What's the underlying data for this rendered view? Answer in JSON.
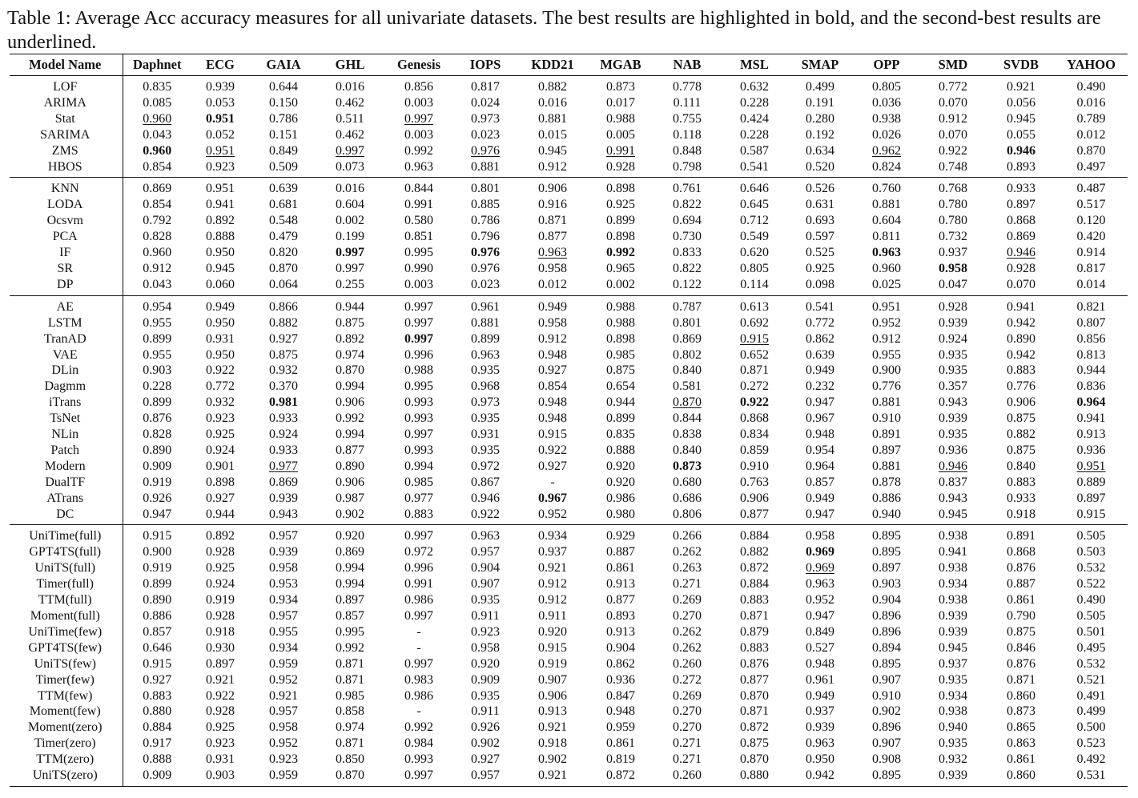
{
  "caption": "Table 1: Average Acc accuracy measures for all univariate datasets. The best results are highlighted in bold, and the second-best results are underlined.",
  "columns": [
    "Model Name",
    "Daphnet",
    "ECG",
    "GAIA",
    "GHL",
    "Genesis",
    "IOPS",
    "KDD21",
    "MGAB",
    "NAB",
    "MSL",
    "SMAP",
    "OPP",
    "SMD",
    "SVDB",
    "YAHOO"
  ],
  "groups": [
    {
      "rows": [
        {
          "model": "LOF",
          "values": [
            "0.835",
            "0.939",
            "0.644",
            "0.016",
            "0.856",
            "0.817",
            "0.882",
            "0.873",
            "0.778",
            "0.632",
            "0.499",
            "0.805",
            "0.772",
            "0.921",
            "0.490"
          ]
        },
        {
          "model": "ARIMA",
          "values": [
            "0.085",
            "0.053",
            "0.150",
            "0.462",
            "0.003",
            "0.024",
            "0.016",
            "0.017",
            "0.111",
            "0.228",
            "0.191",
            "0.036",
            "0.070",
            "0.056",
            "0.016"
          ]
        },
        {
          "model": "Stat",
          "values": [
            "0.960",
            "0.951",
            "0.786",
            "0.511",
            "0.997",
            "0.973",
            "0.881",
            "0.988",
            "0.755",
            "0.424",
            "0.280",
            "0.938",
            "0.912",
            "0.945",
            "0.789"
          ],
          "bold": [
            1
          ],
          "underline": [
            0,
            4
          ]
        },
        {
          "model": "SARIMA",
          "values": [
            "0.043",
            "0.052",
            "0.151",
            "0.462",
            "0.003",
            "0.023",
            "0.015",
            "0.005",
            "0.118",
            "0.228",
            "0.192",
            "0.026",
            "0.070",
            "0.055",
            "0.012"
          ]
        },
        {
          "model": "ZMS",
          "values": [
            "0.960",
            "0.951",
            "0.849",
            "0.997",
            "0.992",
            "0.976",
            "0.945",
            "0.991",
            "0.848",
            "0.587",
            "0.634",
            "0.962",
            "0.922",
            "0.946",
            "0.870"
          ],
          "bold": [
            0,
            13
          ],
          "underline": [
            1,
            3,
            5,
            7,
            11
          ]
        },
        {
          "model": "HBOS",
          "values": [
            "0.854",
            "0.923",
            "0.509",
            "0.073",
            "0.963",
            "0.881",
            "0.912",
            "0.928",
            "0.798",
            "0.541",
            "0.520",
            "0.824",
            "0.748",
            "0.893",
            "0.497"
          ]
        }
      ]
    },
    {
      "rows": [
        {
          "model": "KNN",
          "values": [
            "0.869",
            "0.951",
            "0.639",
            "0.016",
            "0.844",
            "0.801",
            "0.906",
            "0.898",
            "0.761",
            "0.646",
            "0.526",
            "0.760",
            "0.768",
            "0.933",
            "0.487"
          ]
        },
        {
          "model": "LODA",
          "values": [
            "0.854",
            "0.941",
            "0.681",
            "0.604",
            "0.991",
            "0.885",
            "0.916",
            "0.925",
            "0.822",
            "0.645",
            "0.631",
            "0.881",
            "0.780",
            "0.897",
            "0.517"
          ]
        },
        {
          "model": "Ocsvm",
          "values": [
            "0.792",
            "0.892",
            "0.548",
            "0.002",
            "0.580",
            "0.786",
            "0.871",
            "0.899",
            "0.694",
            "0.712",
            "0.693",
            "0.604",
            "0.780",
            "0.868",
            "0.120"
          ]
        },
        {
          "model": "PCA",
          "values": [
            "0.828",
            "0.888",
            "0.479",
            "0.199",
            "0.851",
            "0.796",
            "0.877",
            "0.898",
            "0.730",
            "0.549",
            "0.597",
            "0.811",
            "0.732",
            "0.869",
            "0.420"
          ]
        },
        {
          "model": "IF",
          "values": [
            "0.960",
            "0.950",
            "0.820",
            "0.997",
            "0.995",
            "0.976",
            "0.963",
            "0.992",
            "0.833",
            "0.620",
            "0.525",
            "0.963",
            "0.937",
            "0.946",
            "0.914"
          ],
          "bold": [
            3,
            5,
            7,
            11
          ],
          "underline": [
            6,
            13
          ]
        },
        {
          "model": "SR",
          "values": [
            "0.912",
            "0.945",
            "0.870",
            "0.997",
            "0.990",
            "0.976",
            "0.958",
            "0.965",
            "0.822",
            "0.805",
            "0.925",
            "0.960",
            "0.958",
            "0.928",
            "0.817"
          ],
          "bold": [
            12
          ]
        },
        {
          "model": "DP",
          "values": [
            "0.043",
            "0.060",
            "0.064",
            "0.255",
            "0.003",
            "0.023",
            "0.012",
            "0.002",
            "0.122",
            "0.114",
            "0.098",
            "0.025",
            "0.047",
            "0.070",
            "0.014"
          ]
        }
      ]
    },
    {
      "rows": [
        {
          "model": "AE",
          "values": [
            "0.954",
            "0.949",
            "0.866",
            "0.944",
            "0.997",
            "0.961",
            "0.949",
            "0.988",
            "0.787",
            "0.613",
            "0.541",
            "0.951",
            "0.928",
            "0.941",
            "0.821"
          ]
        },
        {
          "model": "LSTM",
          "values": [
            "0.955",
            "0.950",
            "0.882",
            "0.875",
            "0.997",
            "0.881",
            "0.958",
            "0.988",
            "0.801",
            "0.692",
            "0.772",
            "0.952",
            "0.939",
            "0.942",
            "0.807"
          ]
        },
        {
          "model": "TranAD",
          "values": [
            "0.899",
            "0.931",
            "0.927",
            "0.892",
            "0.997",
            "0.899",
            "0.912",
            "0.898",
            "0.869",
            "0.915",
            "0.862",
            "0.912",
            "0.924",
            "0.890",
            "0.856"
          ],
          "bold": [
            4
          ],
          "underline": [
            9
          ]
        },
        {
          "model": "VAE",
          "values": [
            "0.955",
            "0.950",
            "0.875",
            "0.974",
            "0.996",
            "0.963",
            "0.948",
            "0.985",
            "0.802",
            "0.652",
            "0.639",
            "0.955",
            "0.935",
            "0.942",
            "0.813"
          ]
        },
        {
          "model": "DLin",
          "values": [
            "0.903",
            "0.922",
            "0.932",
            "0.870",
            "0.988",
            "0.935",
            "0.927",
            "0.875",
            "0.840",
            "0.871",
            "0.949",
            "0.900",
            "0.935",
            "0.883",
            "0.944"
          ]
        },
        {
          "model": "Dagmm",
          "values": [
            "0.228",
            "0.772",
            "0.370",
            "0.994",
            "0.995",
            "0.968",
            "0.854",
            "0.654",
            "0.581",
            "0.272",
            "0.232",
            "0.776",
            "0.357",
            "0.776",
            "0.836"
          ]
        },
        {
          "model": "iTrans",
          "values": [
            "0.899",
            "0.932",
            "0.981",
            "0.906",
            "0.993",
            "0.973",
            "0.948",
            "0.944",
            "0.870",
            "0.922",
            "0.947",
            "0.881",
            "0.943",
            "0.906",
            "0.964"
          ],
          "bold": [
            2,
            9,
            14
          ],
          "underline": [
            8
          ]
        },
        {
          "model": "TsNet",
          "values": [
            "0.876",
            "0.923",
            "0.933",
            "0.992",
            "0.993",
            "0.935",
            "0.948",
            "0.899",
            "0.844",
            "0.868",
            "0.967",
            "0.910",
            "0.939",
            "0.875",
            "0.941"
          ]
        },
        {
          "model": "NLin",
          "values": [
            "0.828",
            "0.925",
            "0.924",
            "0.994",
            "0.997",
            "0.931",
            "0.915",
            "0.835",
            "0.838",
            "0.834",
            "0.948",
            "0.891",
            "0.935",
            "0.882",
            "0.913"
          ]
        },
        {
          "model": "Patch",
          "values": [
            "0.890",
            "0.924",
            "0.933",
            "0.877",
            "0.993",
            "0.935",
            "0.922",
            "0.888",
            "0.840",
            "0.859",
            "0.954",
            "0.897",
            "0.936",
            "0.875",
            "0.936"
          ]
        },
        {
          "model": "Modern",
          "values": [
            "0.909",
            "0.901",
            "0.977",
            "0.890",
            "0.994",
            "0.972",
            "0.927",
            "0.920",
            "0.873",
            "0.910",
            "0.964",
            "0.881",
            "0.946",
            "0.840",
            "0.951"
          ],
          "bold": [
            8
          ],
          "underline": [
            2,
            12,
            14
          ]
        },
        {
          "model": "DualTF",
          "values": [
            "0.919",
            "0.898",
            "0.869",
            "0.906",
            "0.985",
            "0.867",
            "-",
            "0.920",
            "0.680",
            "0.763",
            "0.857",
            "0.878",
            "0.837",
            "0.883",
            "0.889"
          ]
        },
        {
          "model": "ATrans",
          "values": [
            "0.926",
            "0.927",
            "0.939",
            "0.987",
            "0.977",
            "0.946",
            "0.967",
            "0.986",
            "0.686",
            "0.906",
            "0.949",
            "0.886",
            "0.943",
            "0.933",
            "0.897"
          ],
          "bold": [
            6
          ]
        },
        {
          "model": "DC",
          "values": [
            "0.947",
            "0.944",
            "0.943",
            "0.902",
            "0.883",
            "0.922",
            "0.952",
            "0.980",
            "0.806",
            "0.877",
            "0.947",
            "0.940",
            "0.945",
            "0.918",
            "0.915"
          ]
        }
      ]
    },
    {
      "rows": [
        {
          "model": "UniTime(full)",
          "values": [
            "0.915",
            "0.892",
            "0.957",
            "0.920",
            "0.997",
            "0.963",
            "0.934",
            "0.929",
            "0.266",
            "0.884",
            "0.958",
            "0.895",
            "0.938",
            "0.891",
            "0.505"
          ]
        },
        {
          "model": "GPT4TS(full)",
          "values": [
            "0.900",
            "0.928",
            "0.939",
            "0.869",
            "0.972",
            "0.957",
            "0.937",
            "0.887",
            "0.262",
            "0.882",
            "0.969",
            "0.895",
            "0.941",
            "0.868",
            "0.503"
          ],
          "bold": [
            10
          ]
        },
        {
          "model": "UniTS(full)",
          "values": [
            "0.919",
            "0.925",
            "0.958",
            "0.994",
            "0.996",
            "0.904",
            "0.921",
            "0.861",
            "0.263",
            "0.872",
            "0.969",
            "0.897",
            "0.938",
            "0.876",
            "0.532"
          ],
          "underline": [
            10
          ]
        },
        {
          "model": "Timer(full)",
          "values": [
            "0.899",
            "0.924",
            "0.953",
            "0.994",
            "0.991",
            "0.907",
            "0.912",
            "0.913",
            "0.271",
            "0.884",
            "0.963",
            "0.903",
            "0.934",
            "0.887",
            "0.522"
          ]
        },
        {
          "model": "TTM(full)",
          "values": [
            "0.890",
            "0.919",
            "0.934",
            "0.897",
            "0.986",
            "0.935",
            "0.912",
            "0.877",
            "0.269",
            "0.883",
            "0.952",
            "0.904",
            "0.938",
            "0.861",
            "0.490"
          ]
        },
        {
          "model": "Moment(full)",
          "values": [
            "0.886",
            "0.928",
            "0.957",
            "0.857",
            "0.997",
            "0.911",
            "0.911",
            "0.893",
            "0.270",
            "0.871",
            "0.947",
            "0.896",
            "0.939",
            "0.790",
            "0.505"
          ]
        },
        {
          "model": "UniTime(few)",
          "values": [
            "0.857",
            "0.918",
            "0.955",
            "0.995",
            "-",
            "0.923",
            "0.920",
            "0.913",
            "0.262",
            "0.879",
            "0.849",
            "0.896",
            "0.939",
            "0.875",
            "0.501"
          ]
        },
        {
          "model": "GPT4TS(few)",
          "values": [
            "0.646",
            "0.930",
            "0.934",
            "0.992",
            "-",
            "0.958",
            "0.915",
            "0.904",
            "0.262",
            "0.883",
            "0.527",
            "0.894",
            "0.945",
            "0.846",
            "0.495"
          ]
        },
        {
          "model": "UniTS(few)",
          "values": [
            "0.915",
            "0.897",
            "0.959",
            "0.871",
            "0.997",
            "0.920",
            "0.919",
            "0.862",
            "0.260",
            "0.876",
            "0.948",
            "0.895",
            "0.937",
            "0.876",
            "0.532"
          ]
        },
        {
          "model": "Timer(few)",
          "values": [
            "0.927",
            "0.921",
            "0.952",
            "0.871",
            "0.983",
            "0.909",
            "0.907",
            "0.936",
            "0.272",
            "0.877",
            "0.961",
            "0.907",
            "0.935",
            "0.871",
            "0.521"
          ]
        },
        {
          "model": "TTM(few)",
          "values": [
            "0.883",
            "0.922",
            "0.921",
            "0.985",
            "0.986",
            "0.935",
            "0.906",
            "0.847",
            "0.269",
            "0.870",
            "0.949",
            "0.910",
            "0.934",
            "0.860",
            "0.491"
          ]
        },
        {
          "model": "Moment(few)",
          "values": [
            "0.880",
            "0.928",
            "0.957",
            "0.858",
            "-",
            "0.911",
            "0.913",
            "0.948",
            "0.270",
            "0.871",
            "0.937",
            "0.902",
            "0.938",
            "0.873",
            "0.499"
          ]
        },
        {
          "model": "Moment(zero)",
          "values": [
            "0.884",
            "0.925",
            "0.958",
            "0.974",
            "0.992",
            "0.926",
            "0.921",
            "0.959",
            "0.270",
            "0.872",
            "0.939",
            "0.896",
            "0.940",
            "0.865",
            "0.500"
          ]
        },
        {
          "model": "Timer(zero)",
          "values": [
            "0.917",
            "0.923",
            "0.952",
            "0.871",
            "0.984",
            "0.902",
            "0.918",
            "0.861",
            "0.271",
            "0.875",
            "0.963",
            "0.907",
            "0.935",
            "0.863",
            "0.523"
          ]
        },
        {
          "model": "TTM(zero)",
          "values": [
            "0.888",
            "0.931",
            "0.923",
            "0.850",
            "0.993",
            "0.927",
            "0.902",
            "0.819",
            "0.271",
            "0.870",
            "0.950",
            "0.908",
            "0.932",
            "0.861",
            "0.492"
          ]
        },
        {
          "model": "UniTS(zero)",
          "values": [
            "0.909",
            "0.903",
            "0.959",
            "0.870",
            "0.997",
            "0.957",
            "0.921",
            "0.872",
            "0.260",
            "0.880",
            "0.942",
            "0.895",
            "0.939",
            "0.860",
            "0.531"
          ]
        }
      ]
    }
  ]
}
